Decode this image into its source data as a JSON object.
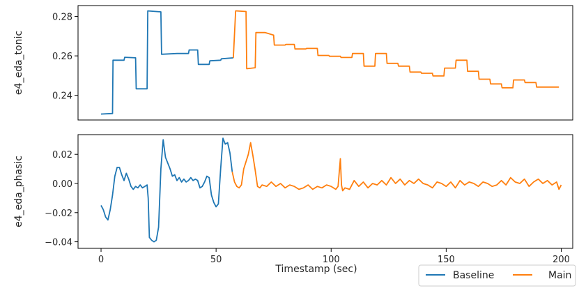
{
  "chart_data": {
    "type": "line",
    "xlabel": "Timestamp (sec)",
    "xlim": [
      -10,
      205
    ],
    "xticks": [
      0,
      50,
      100,
      150,
      200
    ],
    "legend": {
      "placement": "bottom-right",
      "entries": [
        {
          "name": "Baseline",
          "color": "#1f77b4"
        },
        {
          "name": "Main",
          "color": "#ff7f0e"
        }
      ]
    },
    "panels": [
      {
        "ylabel": "e4_eda_tonic",
        "ylim": [
          0.2275,
          0.2855
        ],
        "yticks": [
          0.24,
          0.26,
          0.28
        ],
        "ytick_labels": [
          "0.24",
          "0.26",
          "0.28"
        ],
        "show_x_ticks": false,
        "series": [
          {
            "name": "Baseline",
            "color": "#1f77b4",
            "x": [
              0,
              5,
              5.2,
              10,
              10.3,
              15,
              15.3,
              20,
              20.3,
              26,
              26.3,
              33,
              33.3,
              38,
              38.3,
              42,
              42.3,
              47,
              47.3,
              52,
              52.3,
              57.5
            ],
            "y": [
              0.2305,
              0.2308,
              0.2578,
              0.2578,
              0.2593,
              0.259,
              0.2433,
              0.2433,
              0.2828,
              0.2823,
              0.2608,
              0.2612,
              0.2612,
              0.2612,
              0.263,
              0.263,
              0.2557,
              0.2557,
              0.2575,
              0.2578,
              0.2585,
              0.259
            ]
          },
          {
            "name": "Main",
            "color": "#ff7f0e",
            "x": [
              57.5,
              58.5,
              58.8,
              63,
              63.3,
              67,
              67.3,
              71,
              71.3,
              75,
              75.3,
              80,
              80.3,
              84,
              84.3,
              89,
              89.3,
              94,
              94.3,
              99,
              99.3,
              104,
              104.3,
              109,
              109.3,
              114,
              114.3,
              119,
              119.3,
              124,
              124.3,
              129,
              129.3,
              134,
              134.3,
              139,
              139.3,
              144,
              144.3,
              149,
              149.3,
              154,
              154.3,
              159,
              159.3,
              164,
              164.3,
              169,
              169.3,
              174,
              174.3,
              179,
              179.3,
              184,
              184.3,
              189,
              189.3,
              194,
              194.3,
              199
            ],
            "y": [
              0.259,
              0.2828,
              0.2828,
              0.2825,
              0.2535,
              0.254,
              0.2718,
              0.2718,
              0.2718,
              0.2705,
              0.2655,
              0.2655,
              0.2658,
              0.2658,
              0.2635,
              0.2635,
              0.2638,
              0.2638,
              0.2602,
              0.2602,
              0.2598,
              0.2598,
              0.2592,
              0.2592,
              0.2612,
              0.2612,
              0.2548,
              0.2548,
              0.2612,
              0.2612,
              0.2562,
              0.2562,
              0.2548,
              0.2548,
              0.2518,
              0.2518,
              0.2512,
              0.2512,
              0.2498,
              0.2498,
              0.2538,
              0.2538,
              0.2578,
              0.2578,
              0.2522,
              0.2522,
              0.2482,
              0.2482,
              0.2458,
              0.2458,
              0.2438,
              0.2438,
              0.2478,
              0.2478,
              0.2465,
              0.2465,
              0.2442,
              0.2442,
              0.2442,
              0.2442
            ]
          }
        ]
      },
      {
        "ylabel": "e4_eda_phasic",
        "ylim": [
          -0.0445,
          0.0335
        ],
        "yticks": [
          -0.04,
          -0.02,
          0.0,
          0.02
        ],
        "ytick_labels": [
          "−0.04",
          "−0.02",
          "0.00",
          "0.02"
        ],
        "show_x_ticks": true,
        "series": [
          {
            "name": "Baseline",
            "color": "#1f77b4",
            "x": [
              0,
              1,
              2,
              3,
              4,
              5,
              6,
              7,
              8,
              9,
              10,
              11,
              12,
              13,
              14,
              15,
              16,
              17,
              18,
              19,
              20,
              20.5,
              21,
              22,
              23,
              24,
              25,
              26,
              27,
              28,
              29,
              30,
              31,
              32,
              33,
              34,
              35,
              36,
              37,
              38,
              39,
              40,
              41,
              42,
              43,
              44,
              45,
              46,
              47,
              48,
              49,
              50,
              51,
              52,
              53,
              54,
              55,
              56,
              57
            ],
            "y": [
              -0.015,
              -0.018,
              -0.023,
              -0.025,
              -0.018,
              -0.008,
              0.005,
              0.011,
              0.011,
              0.006,
              0.002,
              0.007,
              0.003,
              -0.002,
              -0.004,
              -0.002,
              -0.003,
              -0.001,
              -0.003,
              -0.002,
              -0.001,
              -0.01,
              -0.037,
              -0.039,
              -0.04,
              -0.039,
              -0.03,
              0.01,
              0.03,
              0.018,
              0.014,
              0.01,
              0.005,
              0.006,
              0.002,
              0.004,
              0.001,
              0.003,
              0.001,
              0.002,
              0.004,
              0.002,
              0.003,
              0.002,
              -0.003,
              -0.002,
              0.001,
              0.005,
              0.004,
              -0.008,
              -0.013,
              -0.016,
              -0.014,
              0.01,
              0.031,
              0.027,
              0.028,
              0.021,
              0.008
            ]
          },
          {
            "name": "Main",
            "color": "#ff7f0e",
            "x": [
              57,
              58,
              59,
              60,
              61,
              62,
              63,
              64,
              65,
              66,
              67,
              68,
              69,
              70,
              72,
              74,
              76,
              78,
              80,
              82,
              84,
              86,
              88,
              90,
              92,
              94,
              96,
              98,
              100,
              102,
              103,
              104,
              104.5,
              105,
              106,
              108,
              110,
              112,
              114,
              116,
              118,
              120,
              122,
              124,
              126,
              128,
              130,
              132,
              134,
              136,
              138,
              140,
              142,
              144,
              146,
              148,
              150,
              152,
              154,
              156,
              158,
              160,
              162,
              164,
              166,
              168,
              170,
              172,
              174,
              176,
              178,
              180,
              182,
              184,
              186,
              188,
              190,
              192,
              194,
              196,
              198,
              199,
              200
            ],
            "y": [
              0.008,
              0.001,
              -0.002,
              -0.003,
              -0.001,
              0.01,
              0.015,
              0.02,
              0.028,
              0.019,
              0.009,
              -0.002,
              -0.003,
              -0.001,
              -0.002,
              0.001,
              -0.002,
              0.0,
              -0.003,
              -0.001,
              -0.002,
              -0.004,
              -0.003,
              -0.001,
              -0.004,
              -0.002,
              -0.003,
              -0.001,
              -0.002,
              -0.004,
              -0.002,
              0.017,
              -0.001,
              -0.005,
              -0.003,
              -0.004,
              0.002,
              -0.002,
              0.001,
              -0.003,
              0.0,
              -0.001,
              0.002,
              -0.001,
              0.004,
              0.0,
              0.003,
              -0.001,
              0.002,
              0.0,
              0.003,
              0.0,
              -0.001,
              -0.003,
              0.001,
              0.0,
              -0.002,
              0.001,
              -0.003,
              0.002,
              -0.001,
              0.001,
              0.0,
              -0.002,
              0.001,
              0.0,
              -0.002,
              -0.001,
              0.002,
              -0.001,
              0.004,
              0.001,
              0.0,
              0.003,
              -0.002,
              0.001,
              0.003,
              0.0,
              0.002,
              -0.001,
              0.001,
              -0.004,
              -0.001
            ]
          }
        ]
      }
    ]
  }
}
